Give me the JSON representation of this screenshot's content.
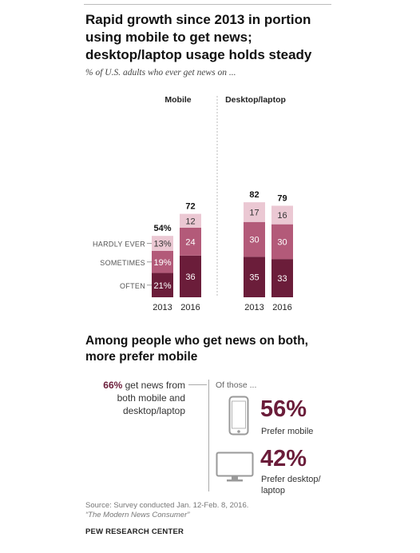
{
  "title": "Rapid growth since 2013 in portion using mobile to get news; desktop/laptop usage holds steady",
  "subtitle": "% of U.S. adults who ever get news on ...",
  "chart_data": {
    "type": "bar",
    "stacked": true,
    "groups": [
      "Mobile",
      "Desktop/laptop"
    ],
    "categories": [
      "2013",
      "2016"
    ],
    "series": [
      {
        "name": "OFTEN",
        "color": "#6b1d3a",
        "values": {
          "Mobile": [
            21,
            36
          ],
          "Desktop/laptop": [
            35,
            33
          ]
        }
      },
      {
        "name": "SOMETIMES",
        "color": "#b35a79",
        "values": {
          "Mobile": [
            19,
            24
          ],
          "Desktop/laptop": [
            30,
            30
          ]
        }
      },
      {
        "name": "HARDLY EVER",
        "color": "#ebc8d3",
        "values": {
          "Mobile": [
            13,
            12
          ],
          "Desktop/laptop": [
            17,
            16
          ]
        }
      }
    ],
    "totals": {
      "Mobile": [
        "54%",
        "72"
      ],
      "Desktop/laptop": [
        "82",
        "79"
      ]
    },
    "segment_labels": {
      "Mobile": [
        [
          "21%",
          "19%",
          "13%"
        ],
        [
          "36",
          "24",
          "12"
        ]
      ],
      "Desktop/laptop": [
        [
          "35",
          "30",
          "17"
        ],
        [
          "33",
          "30",
          "16"
        ]
      ]
    },
    "ylim": [
      0,
      90
    ]
  },
  "section2": {
    "heading": "Among people who get news on both, more prefer mobile",
    "left_pct": "66%",
    "left_text": " get news from both mobile and desktop/laptop",
    "of_those": "Of those ...",
    "mobile_pct": "56%",
    "mobile_label": "Prefer mobile",
    "desktop_pct": "42%",
    "desktop_label": "Prefer desktop/ laptop"
  },
  "source_line1": "Source: Survey conducted Jan. 12-Feb. 8, 2016.",
  "source_line2": "“The Modern News Consumer”",
  "org": "PEW RESEARCH CENTER"
}
